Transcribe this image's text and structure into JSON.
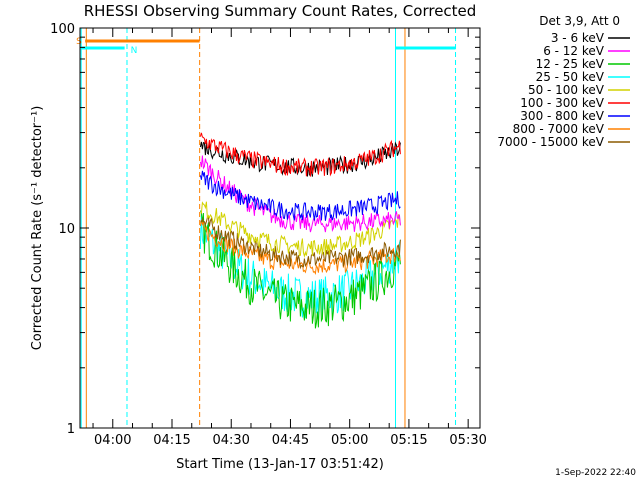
{
  "chart_data": {
    "type": "line",
    "title": "RHESSI Observing Summary Count Rates, Corrected",
    "xlabel": "Start Time (13-Jan-17 03:51:42)",
    "ylabel": "Corrected Count Rate (s⁻¹ detector⁻¹)",
    "y_scale": "log",
    "ylim": [
      1,
      100
    ],
    "y_ticks": [
      "1",
      "10",
      "100"
    ],
    "xlim_minutes_of_day": [
      231.7,
      333
    ],
    "x_ticks": [
      {
        "label": "04:00",
        "minute": 240
      },
      {
        "label": "04:15",
        "minute": 255
      },
      {
        "label": "04:30",
        "minute": 270
      },
      {
        "label": "04:45",
        "minute": 285
      },
      {
        "label": "05:00",
        "minute": 300
      },
      {
        "label": "05:15",
        "minute": 315
      },
      {
        "label": "05:30",
        "minute": 330
      }
    ],
    "legend_header": "Det 3,9, Att 0",
    "legend_position": "top-right",
    "series": [
      {
        "name": "3 - 6 keV",
        "color": "#000000",
        "start": 26,
        "min": 20,
        "end": 25
      },
      {
        "name": "6 - 12 keV",
        "color": "#ff00ff",
        "start": 22,
        "min": 10.5,
        "end": 11
      },
      {
        "name": "12 - 25 keV",
        "color": "#00c800",
        "start": 10,
        "min": 4,
        "end": 7
      },
      {
        "name": "25 - 50 keV",
        "color": "#00ffff",
        "start": 10,
        "min": 4.5,
        "end": 7.5
      },
      {
        "name": "50 - 100 keV",
        "color": "#d2d200",
        "start": 13,
        "min": 8,
        "end": 11
      },
      {
        "name": "100 - 300 keV",
        "color": "#ff0000",
        "start": 28,
        "min": 20,
        "end": 26
      },
      {
        "name": "300 - 800 keV",
        "color": "#0000ff",
        "start": 18,
        "min": 12,
        "end": 14
      },
      {
        "name": "800 - 7000 keV",
        "color": "#ff8000",
        "start": 10,
        "min": 6.5,
        "end": 7.5
      },
      {
        "name": "7000 - 15000 keV",
        "color": "#8c5a00",
        "start": 11,
        "min": 7,
        "end": 8
      }
    ],
    "data_interval_minutes": [
      262.2,
      313
    ],
    "annotations": [
      {
        "label": "S",
        "color": "#ff8000",
        "bar_from": 233,
        "bar_to": 262
      },
      {
        "label": "N",
        "color": "#00ffff",
        "bar_from": 232,
        "bar_to": 243
      }
    ],
    "vertical_markers": [
      {
        "minute": 232,
        "color": "#00ffff",
        "style": "solid"
      },
      {
        "minute": 233.3,
        "color": "#ff8000",
        "style": "solid"
      },
      {
        "minute": 243.6,
        "color": "#00ffff",
        "style": "dashed"
      },
      {
        "minute": 262,
        "color": "#ff8000",
        "style": "dashed"
      },
      {
        "minute": 311.6,
        "color": "#00ffff",
        "style": "solid"
      },
      {
        "minute": 314,
        "color": "#ff8000",
        "style": "solid"
      },
      {
        "minute": 326.8,
        "color": "#00ffff",
        "style": "dashed"
      }
    ],
    "upper_bars": [
      {
        "minute_from": 311.6,
        "minute_to": 326.8,
        "color": "#00ffff"
      }
    ]
  },
  "footer_date": "1-Sep-2022 22:40"
}
